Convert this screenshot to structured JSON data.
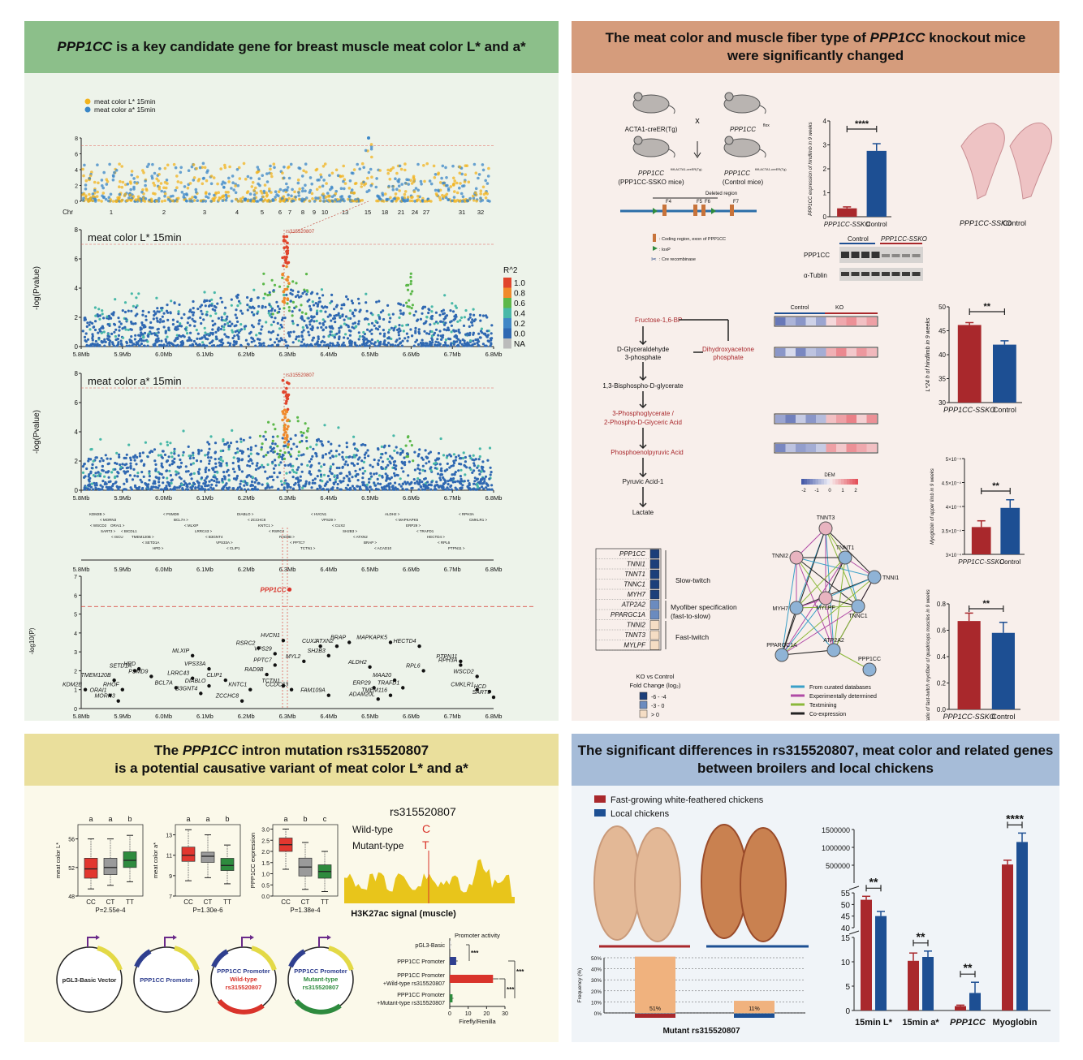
{
  "colors": {
    "green_header": "#8cbf8a",
    "green_bg": "#edf3ea",
    "brown_header": "#d59c7c",
    "brown_bg": "#f8efeb",
    "yellow_header": "#eadf9c",
    "yellow_bg": "#fbf9ea",
    "blue_header": "#a6bcd8",
    "blue_bg": "#f0f4f8",
    "ko_red": "#a9282c",
    "ctrl_blue": "#1d4f93",
    "lead_red": "#d9342b"
  },
  "p1": {
    "title_gene": "PPP1CC",
    "title_rest": " is a key candidate gene for breast muscle meat color L* and a*",
    "legend_L": "meat color L* 15min",
    "legend_a": "meat color a* 15min",
    "gw_yticks": [
      "0",
      "2",
      "4",
      "6",
      "8"
    ],
    "chr_label": "Chr",
    "chr_ticks": [
      "1",
      "2",
      "3",
      "4",
      "5",
      "6",
      "7",
      "8",
      "9",
      "10",
      "13",
      "15",
      "18",
      "21",
      "24",
      "27",
      "31",
      "32"
    ],
    "regL_label": "meat color L* 15min",
    "regA_label": "meat color a* 15min",
    "ylabel": "-log(Pvalue)",
    "reg_yticks": [
      "0",
      "2",
      "4",
      "6",
      "8"
    ],
    "snp_label": "rs315520807",
    "r2_title": "R^2",
    "r2_values": [
      "1.0",
      "0.8",
      "0.6",
      "0.4",
      "0.2",
      "0.0",
      "NA"
    ],
    "r2_colors": [
      "#e0442c",
      "#f08a2b",
      "#5cb84a",
      "#48b8a8",
      "#3f86c6",
      "#2f68b2",
      "#bbbbbb"
    ],
    "xticks": [
      "5.8Mb",
      "5.9Mb",
      "6.0Mb",
      "6.1Mb",
      "6.2Mb",
      "6.3Mb",
      "6.4Mb",
      "6.5Mb",
      "6.6Mb",
      "6.7Mb",
      "6.8Mb"
    ],
    "gene_track": [
      "KDM2B",
      "MORN3",
      "ORAI1",
      "BICDL1",
      "TMEM120B",
      "SETD1A",
      "HPD",
      "PSMD9",
      "BCL7A",
      "MLXIP",
      "LRRC43",
      "B3GNT4",
      "VPS33A",
      "CLIP1",
      "DIABLO",
      "ZCCHC8",
      "KNTC1",
      "RSRC2",
      "RAD9B",
      "PPTC7",
      "TCTN1",
      "HVCN1",
      "VPS29",
      "CUX2",
      "SH2B3",
      "ATXN2",
      "BRAP",
      "ACAD10",
      "ALDH2",
      "MAPKAPK5",
      "ERP29",
      "TRAFD1",
      "HECTD4",
      "RPL6",
      "PTPN11",
      "RPH3A",
      "CMKLR1",
      "WSCD2",
      "SART3",
      "ISCU"
    ],
    "manh_yticks": [
      "0",
      "1",
      "2",
      "3",
      "4",
      "5",
      "6",
      "7"
    ],
    "manh_ylabel": "-log10(P)",
    "gene_points": [
      {
        "n": "KDM2B",
        "x": 5.81,
        "y": 1.0
      },
      {
        "n": "ORAI1",
        "x": 5.87,
        "y": 0.7
      },
      {
        "n": "MORN3",
        "x": 5.89,
        "y": 0.4
      },
      {
        "n": "TMEM120B",
        "x": 5.88,
        "y": 1.5
      },
      {
        "n": "RHOF",
        "x": 5.9,
        "y": 1.0
      },
      {
        "n": "SETD1A",
        "x": 5.93,
        "y": 2.0
      },
      {
        "n": "HPD",
        "x": 5.94,
        "y": 2.1
      },
      {
        "n": "PSMD9",
        "x": 5.97,
        "y": 1.7
      },
      {
        "n": "BCL7A",
        "x": 6.03,
        "y": 1.1
      },
      {
        "n": "MLXIP",
        "x": 6.07,
        "y": 2.8
      },
      {
        "n": "LRRC43",
        "x": 6.07,
        "y": 1.6
      },
      {
        "n": "B3GNT4",
        "x": 6.09,
        "y": 0.8
      },
      {
        "n": "VPS33A",
        "x": 6.11,
        "y": 2.1
      },
      {
        "n": "DIABLO",
        "x": 6.11,
        "y": 1.2
      },
      {
        "n": "CLIP1",
        "x": 6.15,
        "y": 1.5
      },
      {
        "n": "ZCCHC8",
        "x": 6.19,
        "y": 0.4
      },
      {
        "n": "KNTC1",
        "x": 6.21,
        "y": 1.0
      },
      {
        "n": "RSRC2",
        "x": 6.23,
        "y": 3.2
      },
      {
        "n": "RAD9B",
        "x": 6.25,
        "y": 1.8
      },
      {
        "n": "VPS29",
        "x": 6.27,
        "y": 2.9
      },
      {
        "n": "PPTC7",
        "x": 6.27,
        "y": 2.3
      },
      {
        "n": "HVCN1",
        "x": 6.29,
        "y": 3.6
      },
      {
        "n": "TCTN1",
        "x": 6.29,
        "y": 1.2
      },
      {
        "n": "CCDC63",
        "x": 6.31,
        "y": 1.0
      },
      {
        "n": "MYL2",
        "x": 6.34,
        "y": 2.5
      },
      {
        "n": "CUX2",
        "x": 6.38,
        "y": 3.3
      },
      {
        "n": "SH2B3",
        "x": 6.4,
        "y": 2.8
      },
      {
        "n": "FAM109A",
        "x": 6.4,
        "y": 0.7
      },
      {
        "n": "ATXN2",
        "x": 6.42,
        "y": 3.3
      },
      {
        "n": "BRAP",
        "x": 6.45,
        "y": 3.5
      },
      {
        "n": "ALDH2",
        "x": 6.5,
        "y": 2.2
      },
      {
        "n": "ERP29",
        "x": 6.51,
        "y": 1.1
      },
      {
        "n": "ADAM20L",
        "x": 6.52,
        "y": 0.5
      },
      {
        "n": "MAPKAPK5",
        "x": 6.55,
        "y": 3.5
      },
      {
        "n": "MAA20",
        "x": 6.56,
        "y": 1.5
      },
      {
        "n": "TMEM116",
        "x": 6.55,
        "y": 0.7
      },
      {
        "n": "TRAFD1",
        "x": 6.58,
        "y": 1.1
      },
      {
        "n": "HECTD4",
        "x": 6.62,
        "y": 3.3
      },
      {
        "n": "RPL6",
        "x": 6.63,
        "y": 2.0
      },
      {
        "n": "PTPN11",
        "x": 6.72,
        "y": 2.5
      },
      {
        "n": "RPH3A",
        "x": 6.72,
        "y": 2.3
      },
      {
        "n": "WSCD2",
        "x": 6.76,
        "y": 1.7
      },
      {
        "n": "CMKLR1",
        "x": 6.76,
        "y": 1.0
      },
      {
        "n": "HCD",
        "x": 6.79,
        "y": 0.9
      },
      {
        "n": "SART3",
        "x": 6.8,
        "y": 0.6
      }
    ],
    "lead_gene": "PPP1CC"
  },
  "p2": {
    "title1_a": "The meat color and muscle fiber type of ",
    "title1_gene": "PPP1CC",
    "title1_b": " knockout mice",
    "title2": "were significantly changed",
    "mouse1": "ACTA1-creER(Tg)",
    "mouse2": "PPP1CC",
    "mouse2_sup": "flox",
    "mouse3": "PPP1CC",
    "mouse3_sup": "fl/fl;ACTA1-creER(Tg)",
    "mouse3b": "(PPP1CC-SSKO mice)",
    "mouse4": "PPP1CC",
    "mouse4_sup": "fl/fl;ACTA1-creER(Tg)",
    "mouse4b": "(Control mice)",
    "cross": "x",
    "deleted_region": "Deleted region",
    "exons": [
      "F4",
      "F5",
      "F6",
      "F7"
    ],
    "leg_coding": ": Coding region, exon of PPP1CC",
    "leg_loxp": ": loxP",
    "leg_cre": ": Cre recombinase",
    "bar1_ylabel": "PPP1CC expression of hindlimb in 9 weeks",
    "bar1_values": [
      0.35,
      2.75
    ],
    "bar1_err": [
      0.06,
      0.3
    ],
    "bar1_yticks": [
      "0",
      "1",
      "2",
      "3",
      "4"
    ],
    "bar1_sig": "****",
    "bar1_cats": [
      "PPP1CC-SSKO",
      "Control"
    ],
    "photo_caption_ko": "PPP1CC-SSKO",
    "photo_caption_ctrl": "Control",
    "wb_ctrl": "Control",
    "wb_ko": "PPP1CC-SSKO",
    "wb_row1": "PPP1CC",
    "wb_row2": "α-Tublin",
    "path_nodes": [
      "Fructose-1,6-BP",
      "D-Glyceraldehyde 3-phosphate",
      "Dihydroxyacetone phosphate",
      "1,3-Bisphospho-D-glycerate",
      "3-Phosphoglycerate / 2-Phospho-D-Glyceric Acid",
      "Phosphoenolpyruvic Acid",
      "Pyruvic Acid-1",
      "Lactate"
    ],
    "heat_ctrl": "Control",
    "heat_ko": "KO",
    "heat_legend_title": "DEM",
    "heat_legend_ticks": [
      "-2",
      "-1",
      "0",
      "1",
      "2"
    ],
    "heat_rows": [
      [
        -1.6,
        -0.8,
        -1.2,
        -0.4,
        -1.0,
        0.3,
        0.9,
        1.2,
        0.6,
        1.0
      ],
      [
        -1.2,
        -0.3,
        -1.4,
        -0.6,
        -0.9,
        0.8,
        1.3,
        0.5,
        1.1,
        0.7
      ],
      [
        -1.0,
        -1.5,
        -0.5,
        -1.2,
        -0.7,
        0.6,
        1.0,
        1.4,
        0.4,
        1.2
      ],
      [
        -1.4,
        -0.6,
        -1.1,
        -0.9,
        -0.5,
        1.0,
        0.5,
        1.2,
        0.9,
        0.6
      ]
    ],
    "bar2_ylabel": "L*24 h of hindlimb in 9 weeks",
    "bar2_values": [
      46.2,
      42.1
    ],
    "bar2_err": [
      0.5,
      0.8
    ],
    "bar2_yticks": [
      "30",
      "35",
      "40",
      "45",
      "50"
    ],
    "bar2_sig": "**",
    "bar2_cats": [
      "PPP1CC-SSKO",
      "Control"
    ],
    "bar3_ylabel": "Myoglobin of upper limb in 9 weeks",
    "bar3_values": [
      3.57,
      3.97
    ],
    "bar3_err": [
      0.13,
      0.17
    ],
    "bar3_yticks": [
      "3×10⁻⁴",
      "3.5×10⁻⁴",
      "4×10⁻⁴",
      "4.5×10⁻⁴",
      "5×10⁻⁴"
    ],
    "bar3_sig": "**",
    "bar3_cats": [
      "PPP1CC-SSKO",
      "Control"
    ],
    "bar4_ylabel": "Ratio of fast-twitch myofiber of quadriceps muscles in 9 weeks",
    "bar4_values": [
      0.67,
      0.58
    ],
    "bar4_err": [
      0.06,
      0.08
    ],
    "bar4_yticks": [
      "0.0",
      "0.2",
      "0.4",
      "0.6",
      "0.8"
    ],
    "bar4_sig": "**",
    "bar4_cats": [
      "PPP1CC-SSKO",
      "Control"
    ],
    "fc_genes": [
      "PPP1CC",
      "TNNI1",
      "TNNT1",
      "TNNC1",
      "MYH7",
      "ATP2A2",
      "PPARGC1A",
      "TNNI2",
      "TNNT3",
      "MYLPF"
    ],
    "fc_levels": [
      0,
      0,
      0,
      0,
      0,
      1,
      1,
      2,
      2,
      2
    ],
    "fc_group1": "Slow-twitch",
    "fc_group2a": "Myofiber specification",
    "fc_group2b": "(fast-to-slow)",
    "fc_group3": "Fast-twitch",
    "fc_legend_title1": "KO vs Control",
    "fc_legend_title2": "Fold Change (log",
    "fc_legend_items": [
      "-6 - -4",
      "-3 - 0",
      "> 0"
    ],
    "net_nodes": [
      "TNNT3",
      "TNNI2",
      "TNNT1",
      "TNNI1",
      "MYH7",
      "MYLPF",
      "TNNC1",
      "PPARGC1A",
      "ATP2A2",
      "PPP1CC"
    ],
    "net_legend": [
      "From curated databases",
      "Experimentally determined",
      "Textmining",
      "Co-expression"
    ]
  },
  "p3": {
    "title1_a": "The ",
    "title1_gene": "PPP1CC",
    "title1_b": " intron mutation rs315520807",
    "title2": "is a potential causative variant of meat color L* and a*",
    "box1": {
      "ylabel": "meat color L*",
      "yticks": [
        "48",
        "52",
        "56"
      ],
      "letters": [
        "a",
        "a",
        "b"
      ],
      "cats": [
        "CC",
        "CT",
        "TT"
      ],
      "p": "P=2.55e-4"
    },
    "box2": {
      "ylabel": "meat color a*",
      "yticks": [
        "7",
        "9",
        "11",
        "13"
      ],
      "letters": [
        "a",
        "a",
        "b"
      ],
      "cats": [
        "CC",
        "CT",
        "TT"
      ],
      "p": "P=1.30e-6"
    },
    "box3": {
      "ylabel": "PPP1CC expression",
      "yticks": [
        "0.0",
        "0.5",
        "1.0",
        "1.5",
        "2.0",
        "2.5",
        "3.0"
      ],
      "letters": [
        "a",
        "b",
        "c"
      ],
      "cats": [
        "CC",
        "CT",
        "TT"
      ],
      "p": "P=1.38e-4"
    },
    "snp": "rs315520807",
    "wt_label": "Wild-type",
    "wt_allele": "C",
    "mut_label": "Mutant-type",
    "mut_allele": "T",
    "h3k_caption": "H3K27ac signal (muscle)",
    "plasmids": [
      {
        "l1": "pGL3-Basic Vector",
        "l2": "",
        "l3": ""
      },
      {
        "l1": "PPP1CC Promoter",
        "l2": "",
        "l3": ""
      },
      {
        "l1": "PPP1CC Promoter",
        "l2": "Wild-type",
        "l3": "rs315520807"
      },
      {
        "l1": "PPP1CC Promoter",
        "l2": "Mutant-type",
        "l3": "rs315520807"
      }
    ],
    "luc_title": "Promoter activity",
    "luc_cats": [
      "pGL3-Basic",
      "PPP1CC Promoter",
      "PPP1CC Promoter +Wild-type rs315520807",
      "PPP1CC Promoter +Mutant-type rs315520807"
    ],
    "luc_values": [
      0.5,
      3.5,
      23.5,
      1.5
    ],
    "luc_err": [
      0.3,
      0.8,
      3.0,
      0.5
    ],
    "luc_xticks": [
      "0",
      "10",
      "20",
      "30"
    ],
    "luc_xlabel": "Firefly/Renilla",
    "luc_sig": [
      "***",
      "***",
      "***"
    ]
  },
  "p4": {
    "title1": "The significant differences in rs315520807, meat color and related genes",
    "title2": "between broilers and local chickens",
    "legend1": "Fast-growing white-feathered chickens",
    "legend2": "Local chickens",
    "freq_ylabel": "Frequency (%)",
    "freq_yticks": [
      "0%",
      "10%",
      "20%",
      "30%",
      "40%",
      "50%"
    ],
    "freq_values": [
      51,
      11
    ],
    "freq_labels": [
      "51%",
      "11%"
    ],
    "freq_xlabel": "Mutant rs315520807",
    "bar_cats": [
      "15min L*",
      "15min a*",
      "PPP1CC",
      "Myoglobin"
    ],
    "bar_broiler": [
      52,
      10.2,
      0.9,
      520000
    ],
    "bar_local": [
      45,
      11,
      3.6,
      1150000
    ],
    "bar_broiler_err": [
      1.5,
      1.6,
      0.2,
      120000
    ],
    "bar_local_err": [
      2.0,
      1.2,
      2.2,
      250000
    ],
    "yticks_low": [
      "0",
      "5",
      "10",
      "15"
    ],
    "yticks_mid": [
      "40",
      "45",
      "50",
      "55"
    ],
    "yticks_high": [
      "500000",
      "1000000",
      "1500000"
    ],
    "sigs": [
      "**",
      "**",
      "**",
      "****"
    ]
  }
}
